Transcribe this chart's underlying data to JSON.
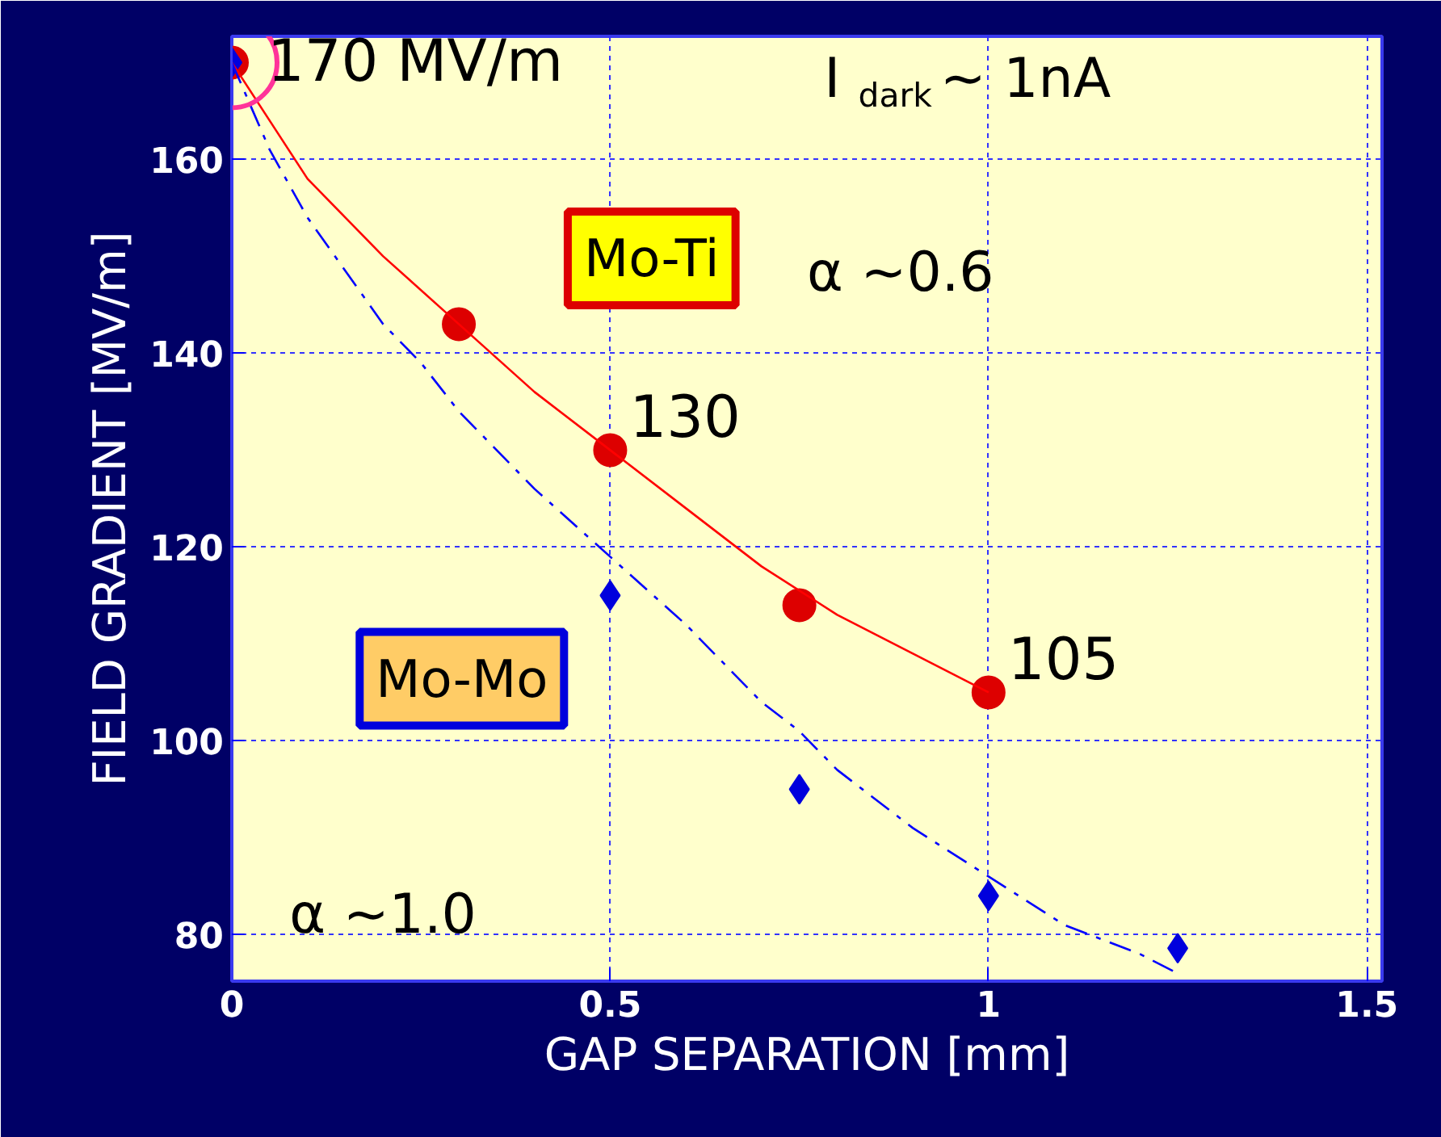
{
  "chart_data": {
    "type": "scatter",
    "xlabel": "GAP SEPARATION [mm]",
    "ylabel": "FIELD GRADIENT [MV/m]",
    "xlim": [
      0,
      1.52
    ],
    "ylim": [
      75.2,
      172.7
    ],
    "xticks": [
      0,
      0.5,
      1,
      1.5
    ],
    "yticks": [
      80,
      100,
      120,
      140,
      160
    ],
    "grid": true,
    "legend": false,
    "series": [
      {
        "name": "Mo-Ti",
        "color": "#dd0000",
        "marker": "circle",
        "x": [
          0,
          0.3,
          0.5,
          0.75,
          1.0
        ],
        "values": [
          170,
          143,
          130,
          114,
          105
        ]
      },
      {
        "name": "Mo-Mo",
        "color": "#0000dd",
        "marker": "diamond",
        "x": [
          0,
          0.5,
          0.75,
          1.0,
          1.25
        ],
        "values": [
          170,
          115,
          95,
          84,
          78.6
        ]
      },
      {
        "type": "line",
        "color": "#ff0000",
        "line_style": "solid",
        "marker": "none",
        "x": [
          0,
          0.05,
          0.1,
          0.2,
          0.3,
          0.4,
          0.5,
          0.6,
          0.7,
          0.8,
          0.9,
          1.0
        ],
        "values": [
          170,
          164,
          158,
          150,
          143,
          136,
          130,
          124,
          118,
          113,
          109,
          105
        ]
      },
      {
        "type": "line",
        "color": "#0000ff",
        "line_style": "dashed",
        "marker": "none",
        "x": [
          0,
          0.05,
          0.1,
          0.2,
          0.25,
          0.3,
          0.4,
          0.5,
          0.6,
          0.7,
          0.75,
          0.8,
          0.9,
          1.0,
          1.1,
          1.2,
          1.25
        ],
        "values": [
          170,
          161,
          154,
          143,
          139,
          134,
          126,
          119,
          112,
          104,
          101,
          97,
          91,
          86,
          81,
          78,
          76
        ]
      }
    ],
    "annotations": [
      {
        "text": "170 MV/m",
        "x": 0,
        "y": 170
      },
      {
        "text": "130",
        "x": 0.5,
        "y": 130
      },
      {
        "text": "105",
        "x": 1.0,
        "y": 105
      },
      "I$_{dark}$~ 1nA",
      "α ~0.6",
      "α ~1.0"
    ]
  }
}
